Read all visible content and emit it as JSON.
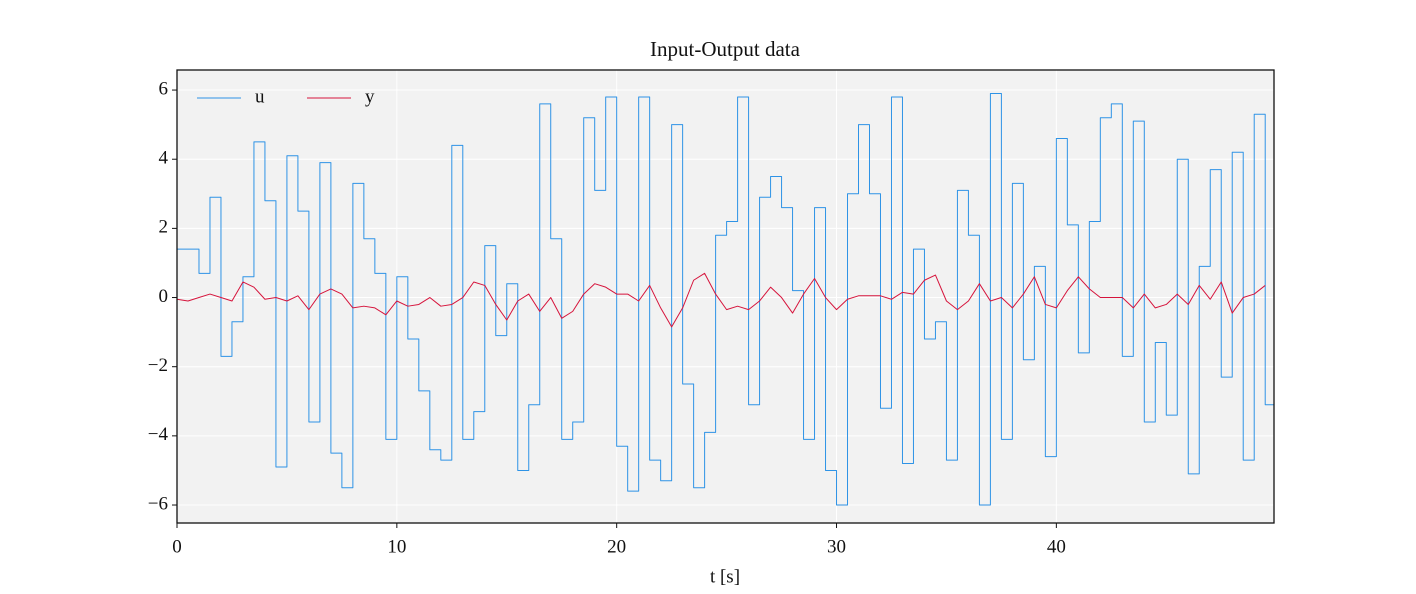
{
  "chart_data": {
    "type": "line",
    "title": "Input-Output data",
    "xlabel": "t [s]",
    "x": [
      0,
      0.5,
      1,
      1.5,
      2,
      2.5,
      3,
      3.5,
      4,
      4.5,
      5,
      5.5,
      6,
      6.5,
      7,
      7.5,
      8,
      8.5,
      9,
      9.5,
      10,
      10.5,
      11,
      11.5,
      12,
      12.5,
      13,
      13.5,
      14,
      14.5,
      15,
      15.5,
      16,
      16.5,
      17,
      17.5,
      18,
      18.5,
      19,
      19.5,
      20,
      20.5,
      21,
      21.5,
      22,
      22.5,
      23,
      23.5,
      24,
      24.5,
      25,
      25.5,
      26,
      26.5,
      27,
      27.5,
      28,
      28.5,
      29,
      29.5,
      30,
      30.5,
      31,
      31.5,
      32,
      32.5,
      33,
      33.5,
      34,
      34.5,
      35,
      35.5,
      36,
      36.5,
      37,
      37.5,
      38,
      38.5,
      39,
      39.5,
      40,
      40.5,
      41,
      41.5,
      42,
      42.5,
      43,
      43.5,
      44,
      44.5,
      45,
      45.5,
      46,
      46.5,
      47,
      47.5,
      48,
      48.5,
      49,
      49.5
    ],
    "series": [
      {
        "name": "u",
        "color": "#2e93e6",
        "drawstyle": "steps-post",
        "values": [
          1.4,
          1.4,
          0.7,
          2.9,
          -1.7,
          -0.7,
          0.6,
          4.5,
          2.8,
          -4.9,
          4.1,
          2.5,
          -3.6,
          3.9,
          -4.5,
          -5.5,
          3.3,
          1.7,
          0.7,
          -4.1,
          0.6,
          -1.2,
          -2.7,
          -4.4,
          -4.7,
          4.4,
          -4.1,
          -3.3,
          1.5,
          -1.1,
          0.4,
          -5.0,
          -3.1,
          5.6,
          1.7,
          -4.1,
          -3.6,
          5.2,
          3.1,
          5.8,
          -4.3,
          -5.6,
          5.8,
          -4.7,
          -5.3,
          5.0,
          -2.5,
          -5.5,
          -3.9,
          1.8,
          2.2,
          5.8,
          -3.1,
          2.9,
          3.5,
          2.6,
          0.2,
          -4.1,
          2.6,
          -5.0,
          -6.0,
          3.0,
          5.0,
          3.0,
          -3.2,
          5.8,
          -4.8,
          1.4,
          -1.2,
          -0.7,
          -4.7,
          3.1,
          1.8,
          -6.0,
          5.9,
          -4.1,
          3.3,
          -1.8,
          0.9,
          -4.6,
          4.6,
          2.1,
          -1.6,
          2.2,
          5.2,
          5.6,
          -1.7,
          5.1,
          -3.6,
          -1.3,
          -3.4,
          4.0,
          -5.1,
          0.9,
          3.7,
          -2.3,
          4.2,
          -4.7,
          5.3,
          -3.1
        ]
      },
      {
        "name": "y",
        "color": "#d6143c",
        "drawstyle": "smooth",
        "values": [
          -0.05,
          -0.1,
          0.0,
          0.1,
          0.0,
          -0.1,
          0.45,
          0.3,
          -0.05,
          0.0,
          -0.1,
          0.05,
          -0.35,
          0.1,
          0.25,
          0.1,
          -0.3,
          -0.25,
          -0.3,
          -0.5,
          -0.1,
          -0.25,
          -0.2,
          0.0,
          -0.25,
          -0.2,
          0.0,
          0.45,
          0.35,
          -0.2,
          -0.65,
          -0.1,
          0.1,
          -0.4,
          0.0,
          -0.6,
          -0.4,
          0.1,
          0.4,
          0.3,
          0.1,
          0.1,
          -0.1,
          0.35,
          -0.3,
          -0.85,
          -0.3,
          0.5,
          0.7,
          0.1,
          -0.35,
          -0.25,
          -0.35,
          -0.1,
          0.3,
          0.0,
          -0.45,
          0.1,
          0.55,
          0.0,
          -0.35,
          -0.05,
          0.05,
          0.05,
          0.05,
          -0.05,
          0.15,
          0.1,
          0.5,
          0.65,
          -0.1,
          -0.35,
          -0.1,
          0.4,
          -0.1,
          0.0,
          -0.3,
          0.1,
          0.6,
          -0.2,
          -0.3,
          0.2,
          0.6,
          0.25,
          0.0,
          0.0,
          0.0,
          -0.3,
          0.1,
          -0.3,
          -0.2,
          0.1,
          -0.2,
          0.35,
          -0.05,
          0.45,
          -0.45,
          0.0,
          0.1,
          0.35
        ]
      }
    ],
    "xlim": [
      0,
      49.9
    ],
    "ylim": [
      -6.52,
      6.58
    ],
    "xticks": [
      0,
      10,
      20,
      30,
      40
    ],
    "yticks": [
      {
        "value": -6,
        "label": "−6"
      },
      {
        "value": -4,
        "label": "−4"
      },
      {
        "value": -2,
        "label": "−2"
      },
      0,
      2,
      4,
      6
    ],
    "grid": true,
    "legend": "upper left"
  }
}
